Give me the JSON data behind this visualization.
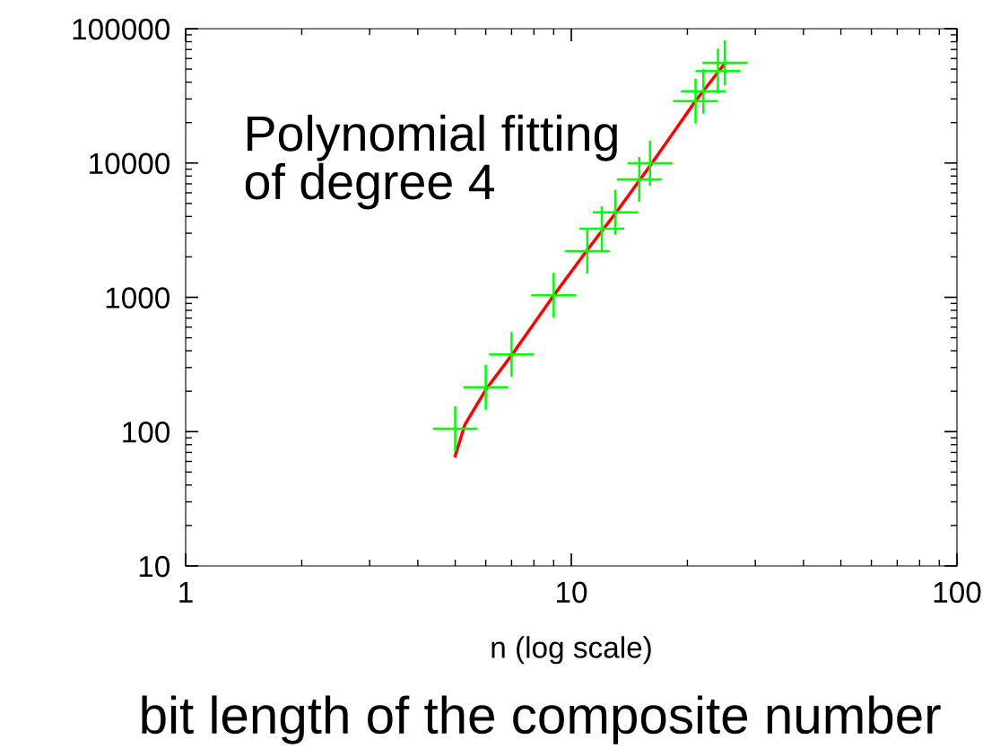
{
  "chart_data": {
    "type": "scatter",
    "xlabel": "n (log scale)",
    "log": "xy",
    "grid": false,
    "xlim": [
      1,
      100
    ],
    "ylim": [
      10,
      100000
    ],
    "xticks": [
      1,
      10,
      100
    ],
    "yticks": [
      10,
      100,
      1000,
      10000,
      100000
    ],
    "annotations": [
      "Polynomial fitting\nof degree 4",
      "bit length of the composite number"
    ],
    "series": [
      {
        "type": "line",
        "color": "#ff0000",
        "marker": "none",
        "line_style": "solid",
        "x": [
          5,
          5.3,
          6,
          7,
          9,
          11,
          13,
          16,
          21,
          25
        ],
        "values": [
          66,
          113,
          205,
          370,
          1030,
          2250,
          4200,
          9500,
          29000,
          55000
        ]
      },
      {
        "color": "#00ff00",
        "marker": "cross",
        "x": [
          5,
          6,
          7,
          9,
          11,
          12,
          13,
          15,
          16,
          21,
          22,
          24,
          25
        ],
        "values": [
          105,
          214,
          375,
          1035,
          2210,
          3240,
          4300,
          7550,
          9960,
          28900,
          34200,
          48300,
          55800
        ]
      }
    ]
  }
}
